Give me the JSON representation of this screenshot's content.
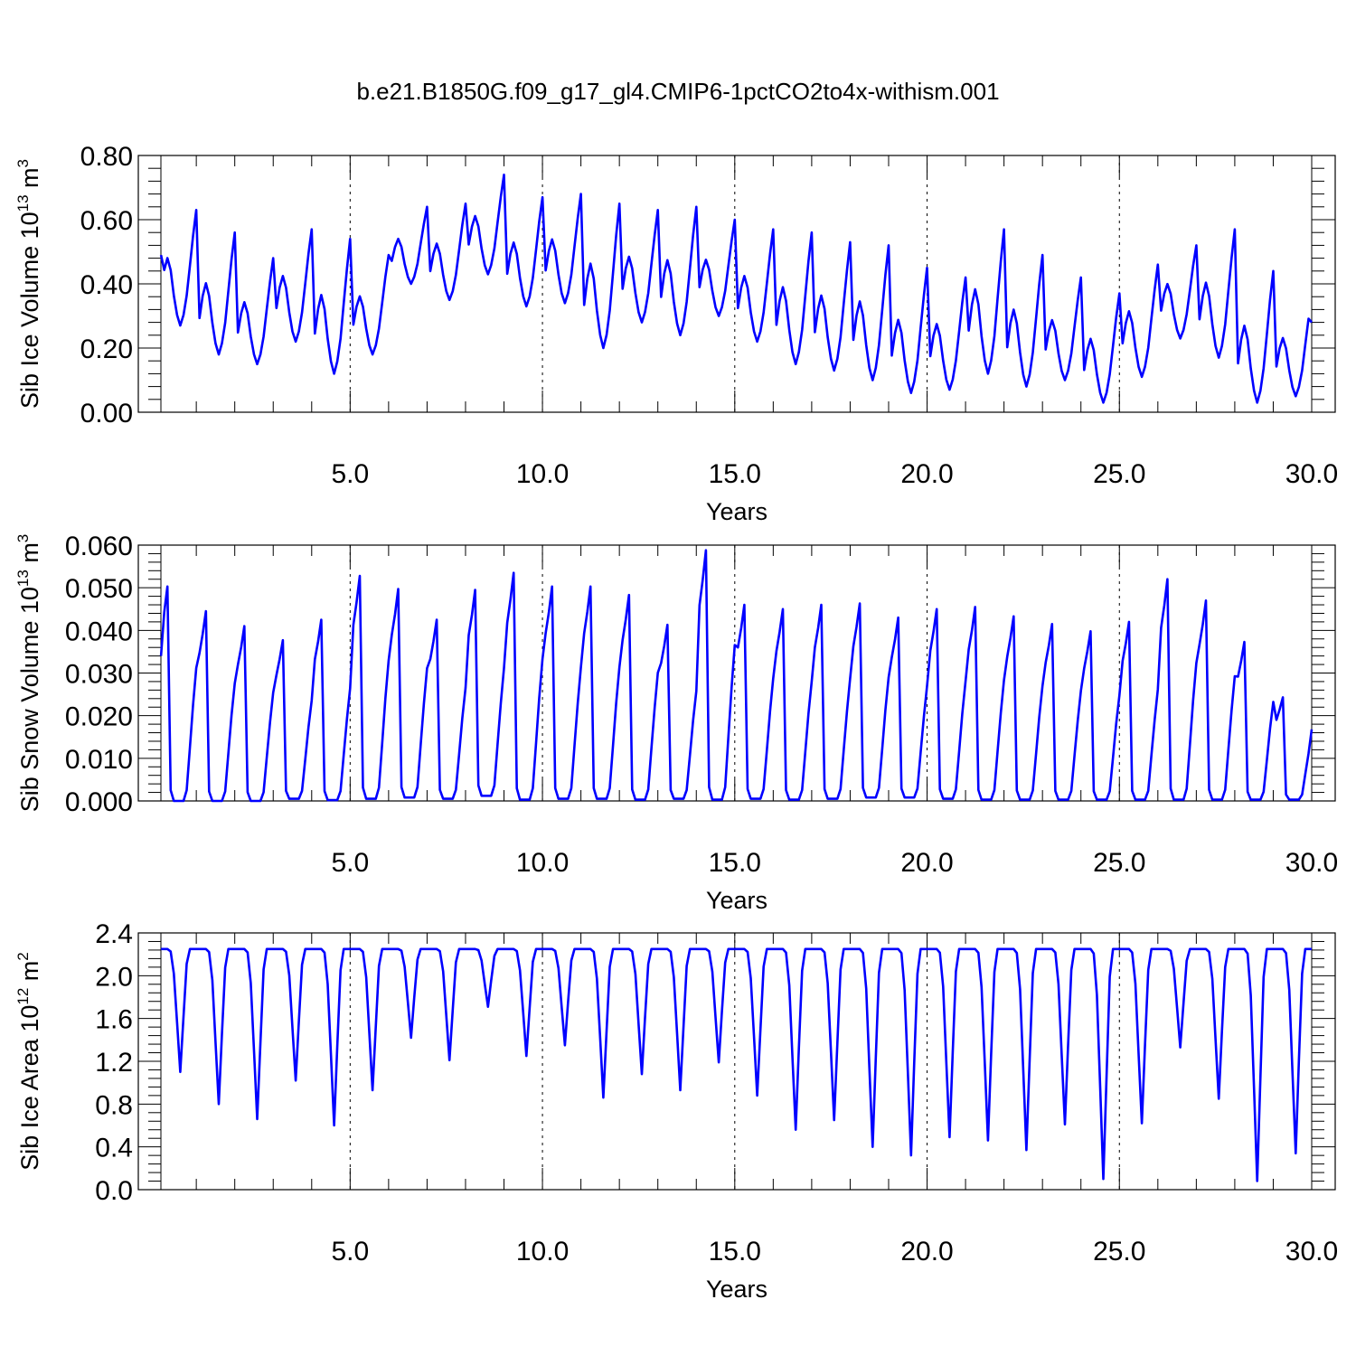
{
  "title": "b.e21.B1850G.f09_g17_gl4.CMIP6-1pctCO2to4x-withism.001",
  "colors": {
    "series": "#0000ff",
    "axes": "#000000"
  },
  "chart_data": [
    {
      "type": "line",
      "ylabel_main": "Sib Ice Volume 10",
      "ylabel_exp": "13",
      "ylabel_unit": "m",
      "ylabel_unit_exp": "3",
      "xlabel": "Years",
      "xlim": [
        0.08,
        30.0
      ],
      "ylim": [
        0,
        0.8
      ],
      "xticks": [
        5,
        10,
        15,
        20,
        25,
        30
      ],
      "xtick_labels": [
        "5.0",
        "10.0",
        "15.0",
        "20.0",
        "25.0",
        "30.0"
      ],
      "yticks": [
        0,
        0.2,
        0.4,
        0.6,
        0.8
      ],
      "ytick_labels": [
        "0.00",
        "0.20",
        "0.40",
        "0.60",
        "0.80"
      ],
      "grid_x": true,
      "peaks": [
        0.63,
        0.56,
        0.48,
        0.57,
        0.54,
        0.49,
        0.64,
        0.65,
        0.74,
        0.67,
        0.68,
        0.65,
        0.63,
        0.64,
        0.6,
        0.57,
        0.56,
        0.53,
        0.52,
        0.45,
        0.42,
        0.57,
        0.49,
        0.42,
        0.37,
        0.46,
        0.52,
        0.57,
        0.44,
        0.36
      ],
      "troughs": [
        0.27,
        0.18,
        0.15,
        0.22,
        0.12,
        0.18,
        0.4,
        0.35,
        0.43,
        0.33,
        0.34,
        0.2,
        0.28,
        0.24,
        0.3,
        0.22,
        0.15,
        0.13,
        0.1,
        0.06,
        0.07,
        0.12,
        0.08,
        0.1,
        0.03,
        0.11,
        0.23,
        0.17,
        0.03,
        0.05
      ],
      "start_value": 0.49,
      "end_value": 0.28
    },
    {
      "type": "line",
      "ylabel_main": "Sib Snow Volume 10",
      "ylabel_exp": "13",
      "ylabel_unit": "m",
      "ylabel_unit_exp": "3",
      "xlabel": "Years",
      "xlim": [
        0.08,
        30.0
      ],
      "ylim": [
        0,
        0.06
      ],
      "xticks": [
        5,
        10,
        15,
        20,
        25,
        30
      ],
      "xtick_labels": [
        "5.0",
        "10.0",
        "15.0",
        "20.0",
        "25.0",
        "30.0"
      ],
      "yticks": [
        0,
        0.01,
        0.02,
        0.03,
        0.04,
        0.05,
        0.06
      ],
      "ytick_labels": [
        "0.000",
        "0.010",
        "0.020",
        "0.030",
        "0.040",
        "0.050",
        "0.060"
      ],
      "grid_x": true,
      "peaks": [
        0.0503,
        0.0445,
        0.041,
        0.0377,
        0.0425,
        0.0528,
        0.0497,
        0.0425,
        0.0495,
        0.0535,
        0.0503,
        0.0503,
        0.0483,
        0.0413,
        0.0588,
        0.046,
        0.045,
        0.046,
        0.0463,
        0.043,
        0.045,
        0.0455,
        0.0433,
        0.0415,
        0.0398,
        0.042,
        0.052,
        0.047,
        0.0373,
        0.0243
      ],
      "troughs": [
        0.0,
        0.0,
        0.0,
        0.0005,
        0.0002,
        0.0005,
        0.0008,
        0.0005,
        0.0012,
        0.0003,
        0.0005,
        0.0005,
        0.0003,
        0.0005,
        0.0003,
        0.0005,
        0.0003,
        0.0005,
        0.0008,
        0.0008,
        0.0005,
        0.0003,
        0.0003,
        0.0003,
        0.0003,
        0.0003,
        0.0003,
        0.0003,
        0.0003,
        0.0003
      ],
      "start_value": 0.034,
      "end_value": 0.0168
    },
    {
      "type": "line",
      "ylabel_main": "Sib Ice Area 10",
      "ylabel_exp": "12",
      "ylabel_unit": "m",
      "ylabel_unit_exp": "2",
      "xlabel": "Years",
      "xlim": [
        0.08,
        30.0
      ],
      "ylim": [
        0,
        2.4
      ],
      "xticks": [
        5,
        10,
        15,
        20,
        25,
        30
      ],
      "xtick_labels": [
        "5.0",
        "10.0",
        "15.0",
        "20.0",
        "25.0",
        "30.0"
      ],
      "yticks": [
        0,
        0.4,
        0.8,
        1.2,
        1.6,
        2.0,
        2.4
      ],
      "ytick_labels": [
        "0.0",
        "0.4",
        "0.8",
        "1.2",
        "1.6",
        "2.0",
        "2.4"
      ],
      "grid_x": true,
      "peaks": [
        2.25,
        2.25,
        2.25,
        2.25,
        2.25,
        2.25,
        2.25,
        2.25,
        2.25,
        2.25,
        2.25,
        2.25,
        2.25,
        2.25,
        2.25,
        2.25,
        2.25,
        2.25,
        2.25,
        2.25,
        2.25,
        2.25,
        2.25,
        2.25,
        2.25,
        2.25,
        2.25,
        2.25,
        2.25,
        2.25
      ],
      "troughs": [
        1.1,
        0.8,
        0.66,
        1.02,
        0.6,
        0.93,
        1.42,
        1.21,
        1.71,
        1.25,
        1.35,
        0.86,
        1.08,
        0.93,
        1.19,
        0.88,
        0.56,
        0.65,
        0.4,
        0.32,
        0.49,
        0.46,
        0.37,
        0.61,
        0.1,
        0.62,
        1.33,
        0.85,
        0.08,
        0.34
      ],
      "start_value": 2.25,
      "end_value": 2.25
    }
  ]
}
